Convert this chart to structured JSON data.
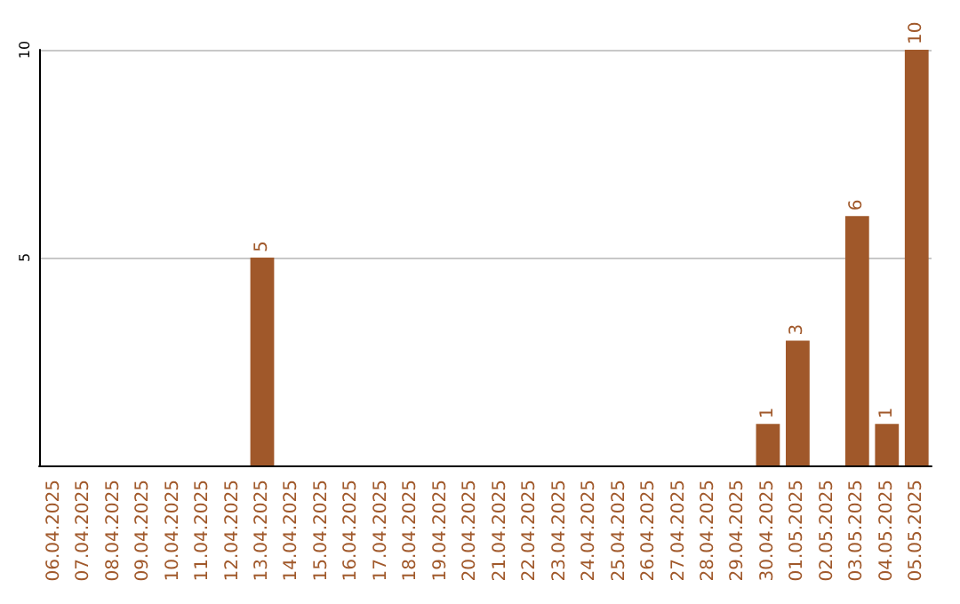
{
  "chart_data": {
    "type": "bar",
    "categories": [
      "06.04.2025",
      "07.04.2025",
      "08.04.2025",
      "09.04.2025",
      "10.04.2025",
      "11.04.2025",
      "12.04.2025",
      "13.04.2025",
      "14.04.2025",
      "15.04.2025",
      "16.04.2025",
      "17.04.2025",
      "18.04.2025",
      "19.04.2025",
      "20.04.2025",
      "21.04.2025",
      "22.04.2025",
      "23.04.2025",
      "24.04.2025",
      "25.04.2025",
      "26.04.2025",
      "27.04.2025",
      "28.04.2025",
      "29.04.2025",
      "30.04.2025",
      "01.05.2025",
      "02.05.2025",
      "03.05.2025",
      "04.05.2025",
      "05.05.2025"
    ],
    "values": [
      0,
      0,
      0,
      0,
      0,
      0,
      0,
      5,
      0,
      0,
      0,
      0,
      0,
      0,
      0,
      0,
      0,
      0,
      0,
      0,
      0,
      0,
      0,
      0,
      1,
      3,
      0,
      6,
      1,
      10
    ],
    "value_labels": [
      null,
      null,
      null,
      null,
      null,
      null,
      null,
      "5",
      null,
      null,
      null,
      null,
      null,
      null,
      null,
      null,
      null,
      null,
      null,
      null,
      null,
      null,
      null,
      null,
      "1",
      "3",
      null,
      "6",
      "1",
      "10"
    ],
    "color": "#a0582a",
    "ylim": [
      0,
      10
    ],
    "yticks": [
      5,
      10
    ],
    "grid": "y"
  }
}
